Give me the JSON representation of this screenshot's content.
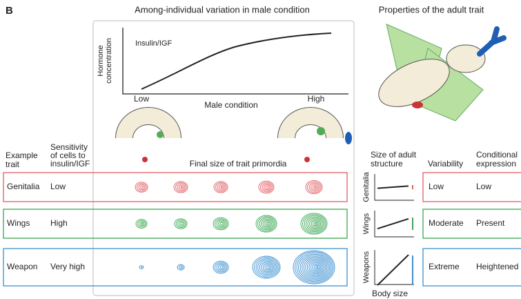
{
  "panel_label": "B",
  "hormone_plot": {
    "title": "Among-individual variation in male condition",
    "y_label": [
      "Hormone",
      "concentration"
    ],
    "curve_label": "Insulin/IGF",
    "x_label": "Male condition",
    "x_low": "Low",
    "x_high": "High"
  },
  "adult": {
    "title": "Properties of the adult trait"
  },
  "table": {
    "headers": {
      "trait": [
        "Example",
        "trait"
      ],
      "sensitivity": [
        "Sensitivity",
        "of cells to",
        "insulin/IGF"
      ],
      "primordia": "Final size of trait primordia",
      "size": [
        "Size of adult",
        "structure"
      ],
      "variability": "Variability",
      "conditional": [
        "Conditional",
        "expression"
      ]
    },
    "rows": [
      {
        "trait": "Genitalia",
        "sensitivity": "Low",
        "plot_label": "Genitalia",
        "variability": "Low",
        "conditional": "Low"
      },
      {
        "trait": "Wings",
        "sensitivity": "High",
        "plot_label": "Wings",
        "variability": "Moderate",
        "conditional": "Present"
      },
      {
        "trait": "Weapon",
        "sensitivity": "Very high",
        "plot_label": "Weapons",
        "variability": "Extreme",
        "conditional": "Heightened"
      }
    ],
    "x_label": "Body size"
  }
}
